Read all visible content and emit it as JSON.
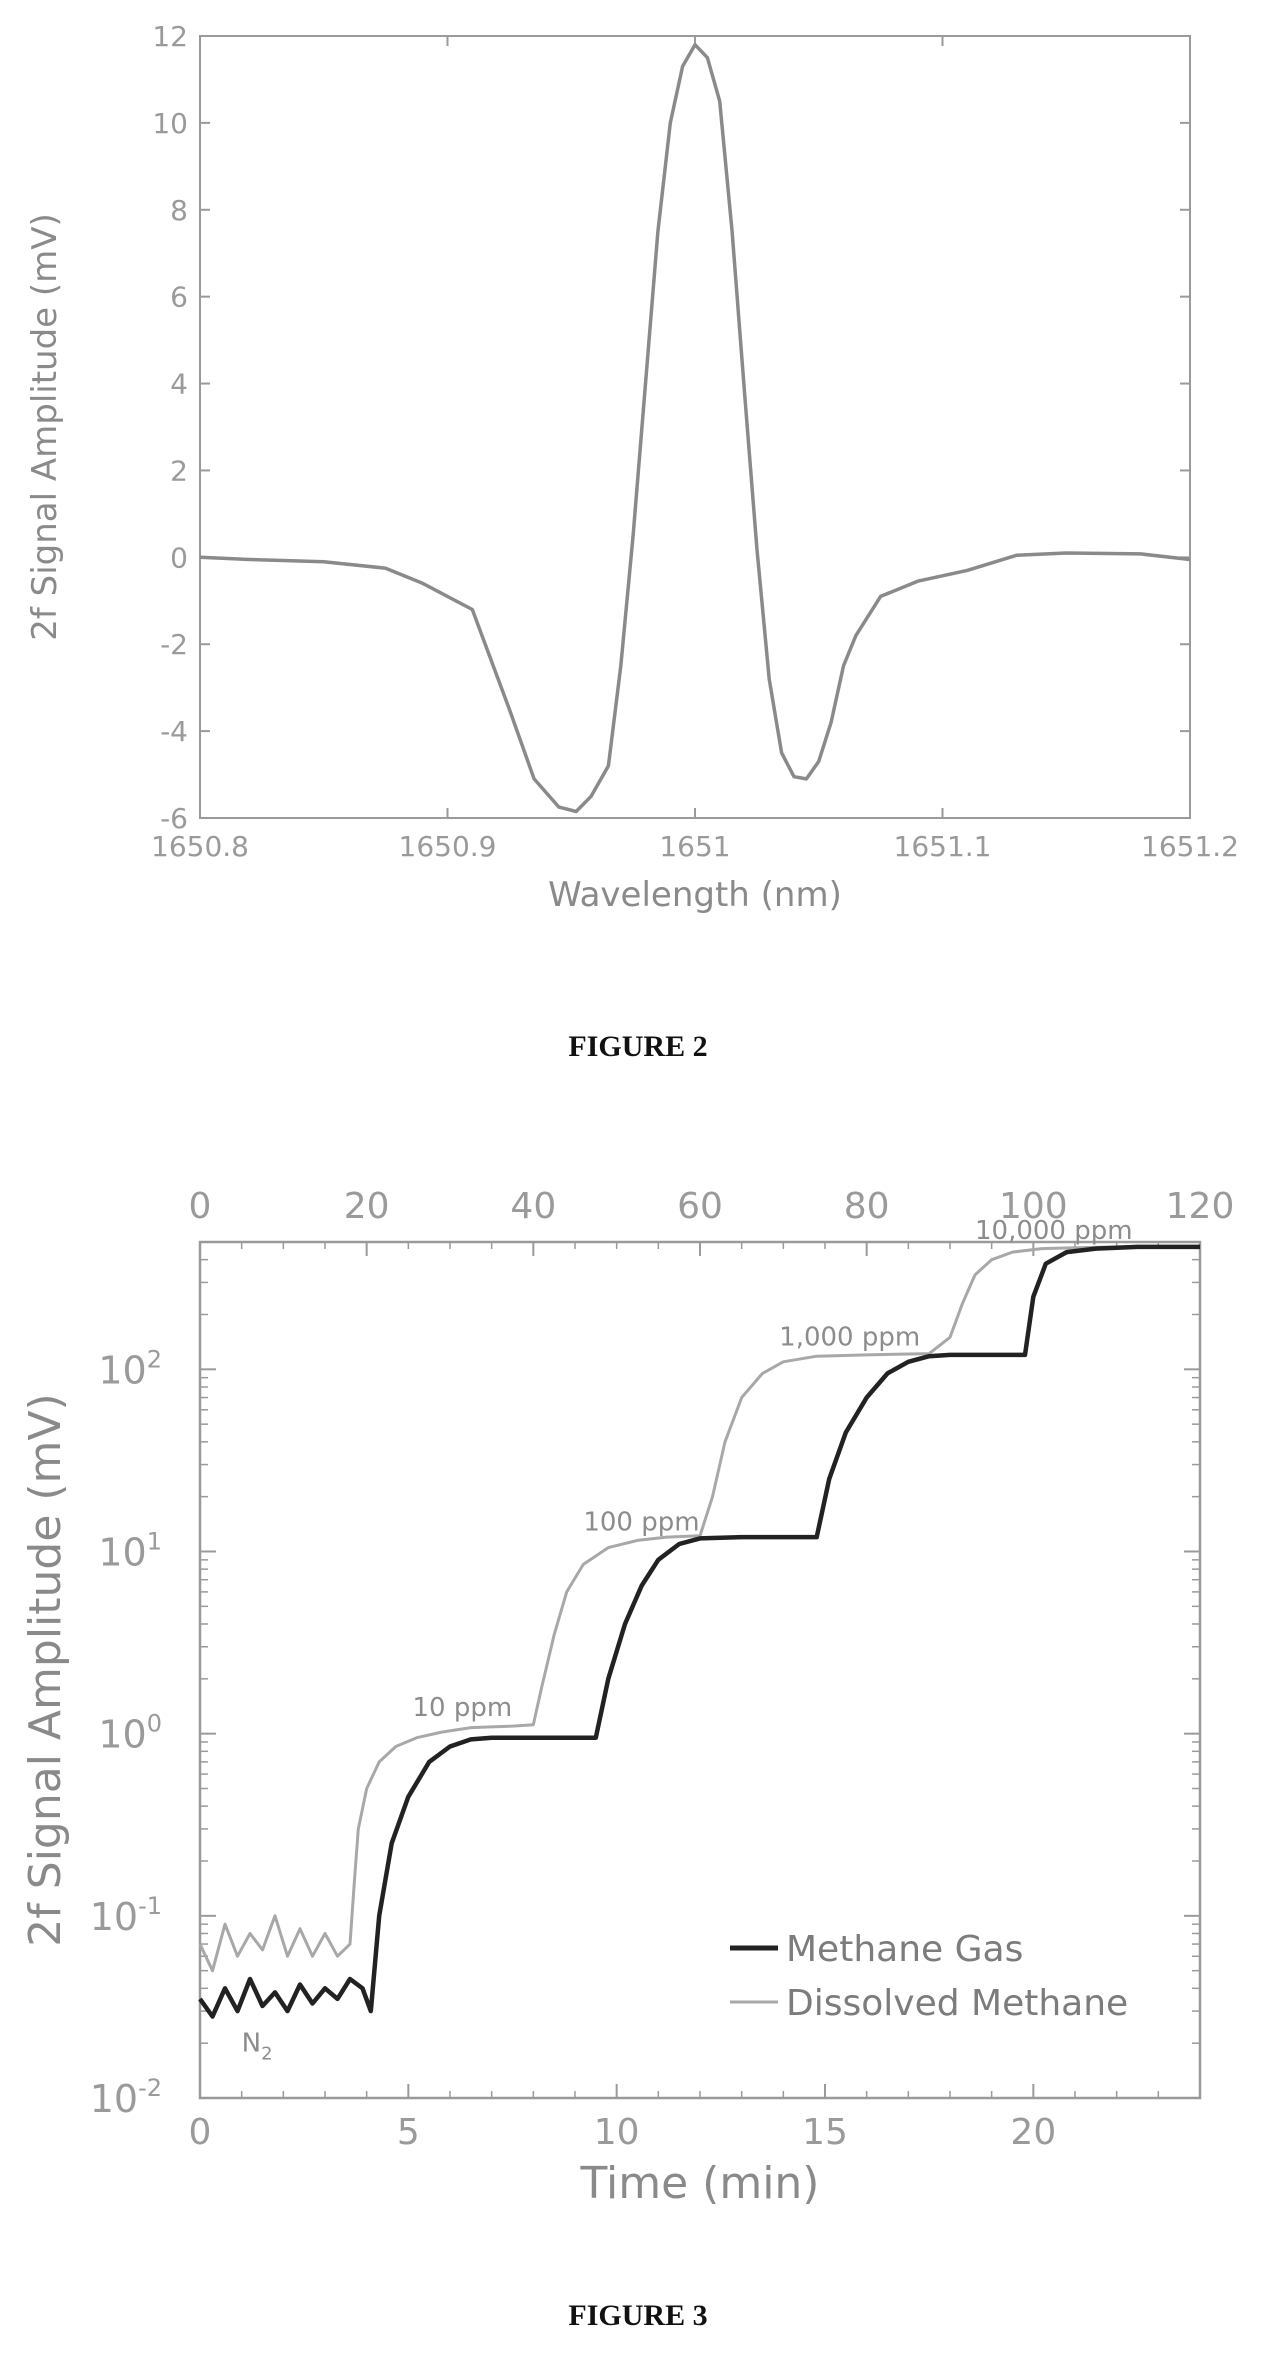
{
  "figures": [
    {
      "caption": "FIGURE 2"
    },
    {
      "caption": "FIGURE 3"
    }
  ],
  "colors": {
    "axes": "#9a9a9a",
    "fig2_line": "#8a8a8a",
    "methane_gas": "#222222",
    "dissolved_methane": "#a8a8a8",
    "noise": "#6e6e6e"
  },
  "chart_data": [
    {
      "type": "line",
      "xlabel": "Wavelength (nm)",
      "ylabel": "2f Signal Amplitude (mV)",
      "xlim": [
        1650.8,
        1651.2
      ],
      "ylim": [
        -6,
        12
      ],
      "xticks": [
        1650.8,
        1650.9,
        1651.0,
        1651.1,
        1651.2
      ],
      "xtick_labels": [
        "1650.8",
        "1650.9",
        "1651",
        "1651.1",
        "1651.2"
      ],
      "yticks": [
        -6,
        -4,
        -2,
        0,
        2,
        4,
        6,
        8,
        10,
        12
      ],
      "ytick_labels": [
        "-6",
        "-4",
        "-2",
        "0",
        "2",
        "4",
        "6",
        "8",
        "10",
        "12"
      ],
      "series": [
        {
          "x": [
            1650.8,
            1650.82,
            1650.85,
            1650.875,
            1650.89,
            1650.91,
            1650.925,
            1650.935,
            1650.945,
            1650.952,
            1650.958,
            1650.965,
            1650.97,
            1650.975,
            1650.98,
            1650.985,
            1650.99,
            1650.995,
            1651.0,
            1651.005,
            1651.01,
            1651.015,
            1651.02,
            1651.025,
            1651.03,
            1651.035,
            1651.04,
            1651.045,
            1651.05,
            1651.055,
            1651.06,
            1651.065,
            1651.075,
            1651.09,
            1651.11,
            1651.13,
            1651.15,
            1651.18,
            1651.2
          ],
          "y": [
            0.0,
            -0.05,
            -0.1,
            -0.25,
            -0.6,
            -1.2,
            -3.5,
            -5.1,
            -5.75,
            -5.85,
            -5.5,
            -4.8,
            -2.5,
            0.5,
            4.0,
            7.5,
            10.0,
            11.3,
            11.8,
            11.5,
            10.5,
            7.5,
            3.8,
            0.2,
            -2.8,
            -4.5,
            -5.05,
            -5.1,
            -4.7,
            -3.8,
            -2.5,
            -1.8,
            -0.9,
            -0.55,
            -0.3,
            0.05,
            0.1,
            0.08,
            -0.05
          ]
        }
      ]
    },
    {
      "type": "line",
      "xlabel": "Time (min)",
      "ylabel": "2f Signal Amplitude (mV)",
      "yscale": "log",
      "xlim": [
        0,
        24
      ],
      "ylim": [
        0.01,
        500
      ],
      "xticks": [
        0,
        5,
        10,
        15,
        20
      ],
      "xtick_labels": [
        "0",
        "5",
        "10",
        "15",
        "20"
      ],
      "top_xlim": [
        0,
        120
      ],
      "top_xticks": [
        0,
        20,
        40,
        60,
        80,
        100,
        120
      ],
      "top_xtick_labels": [
        "0",
        "20",
        "40",
        "60",
        "80",
        "100",
        "120"
      ],
      "ytick_base": "10",
      "ytick_exponents": [
        "-2",
        "-1",
        "0",
        "1",
        "2"
      ],
      "legend_position": "bottom-right",
      "annotations": [
        {
          "text": "10 ppm",
          "x": 5.1,
          "y": 1.25
        },
        {
          "text": "100 ppm",
          "x": 9.2,
          "y": 13
        },
        {
          "text": "1,000 ppm",
          "x": 13.9,
          "y": 135
        },
        {
          "text": "10,000 ppm",
          "x": 18.6,
          "y": 520
        }
      ],
      "n2_label": {
        "base": "N",
        "sub": "2",
        "x": 1.0,
        "y": 0.018
      },
      "series": [
        {
          "name": "Methane Gas",
          "x": [
            0,
            0.3,
            0.6,
            0.9,
            1.2,
            1.5,
            1.8,
            2.1,
            2.4,
            2.7,
            3.0,
            3.3,
            3.6,
            3.9,
            4.1,
            4.3,
            4.6,
            5.0,
            5.5,
            6.0,
            6.5,
            7.0,
            8.0,
            9.0,
            9.5,
            9.8,
            10.2,
            10.6,
            11.0,
            11.5,
            12.0,
            13.0,
            14.0,
            14.8,
            15.1,
            15.5,
            16.0,
            16.5,
            17.0,
            17.5,
            18.0,
            19.0,
            19.8,
            20.0,
            20.3,
            20.8,
            21.5,
            22.5,
            24.0
          ],
          "y": [
            0.035,
            0.028,
            0.04,
            0.03,
            0.045,
            0.032,
            0.038,
            0.03,
            0.042,
            0.033,
            0.04,
            0.035,
            0.045,
            0.04,
            0.03,
            0.1,
            0.25,
            0.45,
            0.7,
            0.85,
            0.93,
            0.95,
            0.95,
            0.95,
            0.95,
            2.0,
            4.0,
            6.5,
            9.0,
            11.0,
            11.8,
            12.0,
            12.0,
            12.0,
            25,
            45,
            70,
            95,
            110,
            118,
            120,
            120,
            120,
            250,
            380,
            440,
            460,
            470,
            470
          ]
        },
        {
          "name": "Dissolved Methane",
          "x": [
            0,
            0.3,
            0.6,
            0.9,
            1.2,
            1.5,
            1.8,
            2.1,
            2.4,
            2.7,
            3.0,
            3.3,
            3.6,
            3.7,
            3.8,
            4.0,
            4.3,
            4.7,
            5.2,
            5.8,
            6.5,
            7.5,
            8.0,
            8.2,
            8.5,
            8.8,
            9.2,
            9.8,
            10.5,
            11.2,
            12.0,
            12.3,
            12.6,
            13.0,
            13.5,
            14.0,
            14.8,
            16.0,
            17.5,
            18.0,
            18.3,
            18.6,
            19.0,
            19.5,
            20.2,
            21.0,
            22.0,
            24.0
          ],
          "y": [
            0.07,
            0.05,
            0.09,
            0.06,
            0.08,
            0.065,
            0.1,
            0.06,
            0.085,
            0.06,
            0.08,
            0.06,
            0.07,
            0.15,
            0.3,
            0.5,
            0.7,
            0.85,
            0.95,
            1.02,
            1.08,
            1.1,
            1.12,
            1.8,
            3.5,
            6.0,
            8.5,
            10.5,
            11.5,
            12.0,
            12.2,
            20,
            40,
            70,
            95,
            110,
            118,
            120,
            122,
            150,
            230,
            330,
            400,
            440,
            460,
            465,
            470,
            470
          ]
        }
      ]
    }
  ]
}
